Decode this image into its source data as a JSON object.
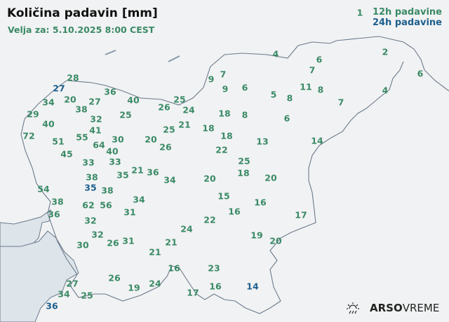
{
  "header": {
    "title": "Količina padavin [mm]",
    "subtitle": "Velja za: 5.10.2025 8:00 CEST"
  },
  "legend": {
    "items": [
      {
        "label": "12h padavine",
        "color": "#3a8a66"
      },
      {
        "label": "24h padavine",
        "color": "#1d5f8e"
      }
    ]
  },
  "colors": {
    "h12": "#3a8a66",
    "h24": "#1d5f8e",
    "land": "#f1f2f3",
    "sea": "#dde4ea",
    "border": "#6b7a8c"
  },
  "brand": {
    "bold": "ARSO",
    "light": "VREME",
    "icon": "sun-rain-icon"
  },
  "stations": [
    {
      "value": "1",
      "period": "12h"
    },
    {
      "value": "28",
      "period": "12h"
    },
    {
      "value": "27",
      "period": "24h"
    },
    {
      "value": "36",
      "period": "12h"
    },
    {
      "value": "40",
      "period": "12h"
    },
    {
      "value": "34",
      "period": "12h"
    },
    {
      "value": "20",
      "period": "12h"
    },
    {
      "value": "27",
      "period": "12h"
    },
    {
      "value": "25",
      "period": "12h"
    },
    {
      "value": "26",
      "period": "12h"
    },
    {
      "value": "24",
      "period": "12h"
    },
    {
      "value": "38",
      "period": "12h"
    },
    {
      "value": "32",
      "period": "12h"
    },
    {
      "value": "25",
      "period": "12h"
    },
    {
      "value": "29",
      "period": "12h"
    },
    {
      "value": "40",
      "period": "12h"
    },
    {
      "value": "41",
      "period": "12h"
    },
    {
      "value": "21",
      "period": "12h"
    },
    {
      "value": "25",
      "period": "12h"
    },
    {
      "value": "72",
      "period": "12h"
    },
    {
      "value": "51",
      "period": "12h"
    },
    {
      "value": "55",
      "period": "12h"
    },
    {
      "value": "20",
      "period": "12h"
    },
    {
      "value": "64",
      "period": "12h"
    },
    {
      "value": "30",
      "period": "12h"
    },
    {
      "value": "40",
      "period": "12h"
    },
    {
      "value": "26",
      "period": "12h"
    },
    {
      "value": "45",
      "period": "12h"
    },
    {
      "value": "33",
      "period": "12h"
    },
    {
      "value": "33",
      "period": "12h"
    },
    {
      "value": "35",
      "period": "12h"
    },
    {
      "value": "21",
      "period": "12h"
    },
    {
      "value": "36",
      "period": "12h"
    },
    {
      "value": "34",
      "period": "12h"
    },
    {
      "value": "38",
      "period": "12h"
    },
    {
      "value": "35",
      "period": "24h"
    },
    {
      "value": "38",
      "period": "12h"
    },
    {
      "value": "54",
      "period": "12h"
    },
    {
      "value": "38",
      "period": "12h"
    },
    {
      "value": "62",
      "period": "12h"
    },
    {
      "value": "56",
      "period": "12h"
    },
    {
      "value": "34",
      "period": "12h"
    },
    {
      "value": "31",
      "period": "12h"
    },
    {
      "value": "36",
      "period": "12h"
    },
    {
      "value": "32",
      "period": "12h"
    },
    {
      "value": "24",
      "period": "12h"
    },
    {
      "value": "32",
      "period": "12h"
    },
    {
      "value": "26",
      "period": "12h"
    },
    {
      "value": "31",
      "period": "12h"
    },
    {
      "value": "30",
      "period": "12h"
    },
    {
      "value": "21",
      "period": "12h"
    },
    {
      "value": "21",
      "period": "12h"
    },
    {
      "value": "16",
      "period": "12h"
    },
    {
      "value": "26",
      "period": "12h"
    },
    {
      "value": "19",
      "period": "12h"
    },
    {
      "value": "24",
      "period": "12h"
    },
    {
      "value": "27",
      "period": "12h"
    },
    {
      "value": "34",
      "period": "12h"
    },
    {
      "value": "25",
      "period": "12h"
    },
    {
      "value": "36",
      "period": "24h"
    },
    {
      "value": "17",
      "period": "12h"
    },
    {
      "value": "4",
      "period": "12h"
    },
    {
      "value": "6",
      "period": "12h"
    },
    {
      "value": "2",
      "period": "12h"
    },
    {
      "value": "7",
      "period": "12h"
    },
    {
      "value": "7",
      "period": "12h"
    },
    {
      "value": "9",
      "period": "12h"
    },
    {
      "value": "6",
      "period": "12h"
    },
    {
      "value": "9",
      "period": "12h"
    },
    {
      "value": "6",
      "period": "12h"
    },
    {
      "value": "11",
      "period": "12h"
    },
    {
      "value": "8",
      "period": "12h"
    },
    {
      "value": "5",
      "period": "12h"
    },
    {
      "value": "8",
      "period": "12h"
    },
    {
      "value": "4",
      "period": "12h"
    },
    {
      "value": "7",
      "period": "12h"
    },
    {
      "value": "18",
      "period": "12h"
    },
    {
      "value": "8",
      "period": "12h"
    },
    {
      "value": "6",
      "period": "12h"
    },
    {
      "value": "18",
      "period": "12h"
    },
    {
      "value": "18",
      "period": "12h"
    },
    {
      "value": "13",
      "period": "12h"
    },
    {
      "value": "14",
      "period": "12h"
    },
    {
      "value": "22",
      "period": "12h"
    },
    {
      "value": "25",
      "period": "12h"
    },
    {
      "value": "18",
      "period": "12h"
    },
    {
      "value": "20",
      "period": "12h"
    },
    {
      "value": "20",
      "period": "12h"
    },
    {
      "value": "15",
      "period": "12h"
    },
    {
      "value": "16",
      "period": "12h"
    },
    {
      "value": "16",
      "period": "12h"
    },
    {
      "value": "17",
      "period": "12h"
    },
    {
      "value": "22",
      "period": "12h"
    },
    {
      "value": "19",
      "period": "12h"
    },
    {
      "value": "20",
      "period": "12h"
    },
    {
      "value": "23",
      "period": "12h"
    },
    {
      "value": "16",
      "period": "12h"
    },
    {
      "value": "14",
      "period": "24h"
    }
  ]
}
